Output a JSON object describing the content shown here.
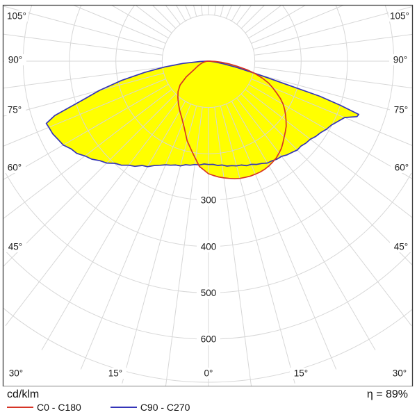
{
  "chart_data": {
    "type": "line",
    "subtype": "polar-photometric-intensity-distribution",
    "title": "",
    "units": "cd/klm",
    "efficiency": "η = 89%",
    "grid": true,
    "radial_axis": {
      "unit": "cd/klm",
      "ring_step": 100,
      "ring_values": [
        100,
        200,
        300,
        400,
        500,
        600
      ],
      "labeled_ticks": [
        "300",
        "400",
        "500",
        "600"
      ],
      "outer_boundary_value": 693
    },
    "angular_axis": {
      "spoke_step_deg": 7.5,
      "label_step_deg": 15,
      "labels": [
        {
          "gamma": -105,
          "text": "105°"
        },
        {
          "gamma": -90,
          "text": "90°"
        },
        {
          "gamma": -75,
          "text": "75°"
        },
        {
          "gamma": -60,
          "text": "60°"
        },
        {
          "gamma": -45,
          "text": "45°"
        },
        {
          "gamma": -30,
          "text": "30°"
        },
        {
          "gamma": -15,
          "text": "15°"
        },
        {
          "gamma": 0,
          "text": "0°"
        },
        {
          "gamma": 15,
          "text": "15°"
        },
        {
          "gamma": 30,
          "text": "30°"
        },
        {
          "gamma": 45,
          "text": "45°"
        },
        {
          "gamma": 60,
          "text": "60°"
        },
        {
          "gamma": 75,
          "text": "75°"
        },
        {
          "gamma": 90,
          "text": "90°"
        },
        {
          "gamma": 105,
          "text": "105°"
        }
      ]
    },
    "colors": {
      "fill": "#ffff00",
      "grid": "#d7d7d7",
      "border": "#3f3f3f",
      "text": "#1a1a1a"
    },
    "legend": {
      "position": "bottom-left",
      "entries": [
        {
          "label": "C0 - C180",
          "color": "#d63426"
        },
        {
          "label": "C90 - C270",
          "color": "#3434b8"
        }
      ]
    },
    "series": [
      {
        "name": "C90 - C270",
        "color": "#3434b8",
        "filled": true,
        "points": [
          [
            -90,
            2
          ],
          [
            -87.5,
            18
          ],
          [
            -85,
            55
          ],
          [
            -82.5,
            95
          ],
          [
            -80,
            140
          ],
          [
            -77.5,
            192
          ],
          [
            -75,
            243
          ],
          [
            -72.5,
            292
          ],
          [
            -70.5,
            352
          ],
          [
            -69,
            375
          ],
          [
            -67.5,
            373
          ],
          [
            -65,
            371
          ],
          [
            -62.5,
            366
          ],
          [
            -60,
            362
          ],
          [
            -57.5,
            352
          ],
          [
            -55,
            347
          ],
          [
            -52.5,
            336
          ],
          [
            -50,
            329
          ],
          [
            -47.5,
            318
          ],
          [
            -45,
            311
          ],
          [
            -42.5,
            299
          ],
          [
            -40,
            293
          ],
          [
            -37.5,
            283
          ],
          [
            -35,
            277
          ],
          [
            -32.5,
            267
          ],
          [
            -30,
            263
          ],
          [
            -27.5,
            254
          ],
          [
            -25,
            248
          ],
          [
            -22.5,
            242
          ],
          [
            -20,
            239
          ],
          [
            -17.5,
            235
          ],
          [
            -15,
            234
          ],
          [
            -12.5,
            229
          ],
          [
            -10,
            228
          ],
          [
            -7.5,
            225
          ],
          [
            -5,
            225
          ],
          [
            -2.5,
            222
          ],
          [
            0,
            223
          ],
          [
            2.5,
            223
          ],
          [
            5,
            226
          ],
          [
            7.5,
            226
          ],
          [
            10,
            230
          ],
          [
            12.5,
            231
          ],
          [
            15,
            234
          ],
          [
            17.5,
            235
          ],
          [
            20,
            240
          ],
          [
            22.5,
            241
          ],
          [
            25,
            246
          ],
          [
            27.5,
            249
          ],
          [
            30,
            254
          ],
          [
            32.5,
            255
          ],
          [
            35,
            258
          ],
          [
            37.5,
            259
          ],
          [
            40,
            264
          ],
          [
            42.5,
            267
          ],
          [
            45,
            271
          ],
          [
            47.5,
            271
          ],
          [
            50,
            275
          ],
          [
            52.5,
            277
          ],
          [
            55,
            283
          ],
          [
            57.5,
            287
          ],
          [
            60,
            294
          ],
          [
            62.5,
            299
          ],
          [
            65,
            308
          ],
          [
            67.5,
            318
          ],
          [
            69.5,
            342
          ],
          [
            70.5,
            344
          ],
          [
            71.5,
            300
          ],
          [
            72.5,
            252
          ],
          [
            75,
            112
          ],
          [
            77.5,
            62
          ],
          [
            80,
            32
          ],
          [
            82.5,
            16
          ],
          [
            85,
            8
          ],
          [
            87.5,
            4
          ],
          [
            90,
            1
          ]
        ]
      },
      {
        "name": "C0 - C180",
        "color": "#d63426",
        "filled": true,
        "points": [
          [
            -90,
            1
          ],
          [
            -85,
            4
          ],
          [
            -80,
            8
          ],
          [
            -75,
            13
          ],
          [
            -70,
            19
          ],
          [
            -65,
            26
          ],
          [
            -60,
            35
          ],
          [
            -55,
            58
          ],
          [
            -50,
            80
          ],
          [
            -45,
            93
          ],
          [
            -40,
            103
          ],
          [
            -35,
            113
          ],
          [
            -30,
            124
          ],
          [
            -25,
            136
          ],
          [
            -20,
            153
          ],
          [
            -15,
            178
          ],
          [
            -10,
            200
          ],
          [
            -5,
            228
          ],
          [
            -2.5,
            235
          ],
          [
            0,
            243
          ],
          [
            2.5,
            247
          ],
          [
            5,
            251
          ],
          [
            7.5,
            254
          ],
          [
            10,
            257
          ],
          [
            12.5,
            260
          ],
          [
            15,
            262
          ],
          [
            17.5,
            263
          ],
          [
            20,
            264
          ],
          [
            22.5,
            264
          ],
          [
            25,
            264
          ],
          [
            27.5,
            263
          ],
          [
            30,
            261
          ],
          [
            32.5,
            258
          ],
          [
            35,
            255
          ],
          [
            37.5,
            250
          ],
          [
            40,
            245
          ],
          [
            42.5,
            238
          ],
          [
            45,
            231
          ],
          [
            47.5,
            225
          ],
          [
            50,
            219
          ],
          [
            52.5,
            211
          ],
          [
            55,
            203
          ],
          [
            57.5,
            195
          ],
          [
            60,
            186
          ],
          [
            62.5,
            175
          ],
          [
            65,
            162
          ],
          [
            67.5,
            150
          ],
          [
            70,
            138
          ],
          [
            72.5,
            122
          ],
          [
            75,
            104
          ],
          [
            77.5,
            85
          ],
          [
            80,
            62
          ],
          [
            82.5,
            45
          ],
          [
            85,
            28
          ],
          [
            87.5,
            14
          ],
          [
            90,
            2
          ]
        ]
      }
    ]
  }
}
